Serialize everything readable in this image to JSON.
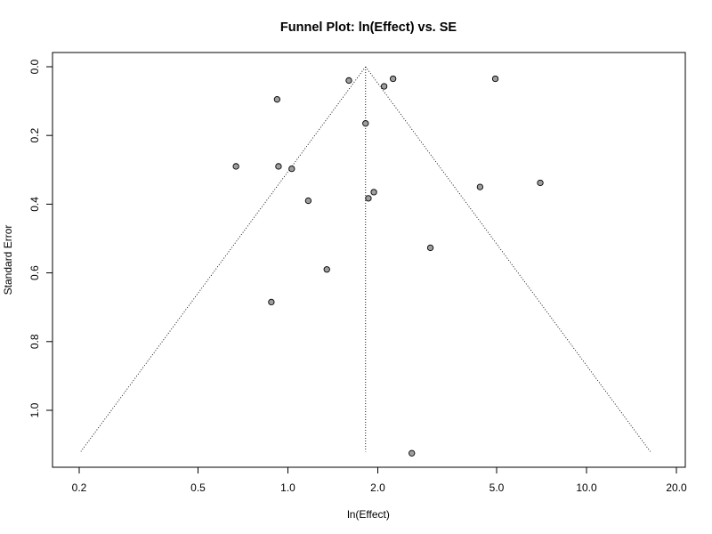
{
  "chart_data": {
    "type": "scatter",
    "title": "Funnel Plot: ln(Effect) vs. SE",
    "xlabel": "ln(Effect)",
    "ylabel": "Standard Error",
    "x_scale": "log",
    "xlim": [
      0.2,
      20.0
    ],
    "ylim": [
      1.12,
      0.0
    ],
    "x_ticks": [
      0.2,
      0.5,
      1.0,
      2.0,
      5.0,
      10.0,
      20.0
    ],
    "x_tick_labels": [
      "0.2",
      "0.5",
      "1.0",
      "2.0",
      "5.0",
      "10.0",
      "20.0"
    ],
    "y_ticks": [
      0.0,
      0.2,
      0.4,
      0.6,
      0.8,
      1.0
    ],
    "y_tick_labels": [
      "0.0",
      "0.2",
      "0.4",
      "0.6",
      "0.8",
      "1.0"
    ],
    "y_reversed": true,
    "grid": false,
    "summary_effect": 1.82,
    "points": [
      {
        "x": 1.6,
        "y": 0.04
      },
      {
        "x": 2.25,
        "y": 0.035
      },
      {
        "x": 2.1,
        "y": 0.057
      },
      {
        "x": 4.95,
        "y": 0.035
      },
      {
        "x": 0.92,
        "y": 0.095
      },
      {
        "x": 1.82,
        "y": 0.165
      },
      {
        "x": 0.67,
        "y": 0.29
      },
      {
        "x": 0.93,
        "y": 0.29
      },
      {
        "x": 1.03,
        "y": 0.297
      },
      {
        "x": 7.0,
        "y": 0.338
      },
      {
        "x": 4.4,
        "y": 0.35
      },
      {
        "x": 1.94,
        "y": 0.365
      },
      {
        "x": 1.86,
        "y": 0.383
      },
      {
        "x": 1.17,
        "y": 0.39
      },
      {
        "x": 3.0,
        "y": 0.527
      },
      {
        "x": 1.35,
        "y": 0.59
      },
      {
        "x": 0.88,
        "y": 0.685
      },
      {
        "x": 2.6,
        "y": 1.125
      }
    ]
  }
}
